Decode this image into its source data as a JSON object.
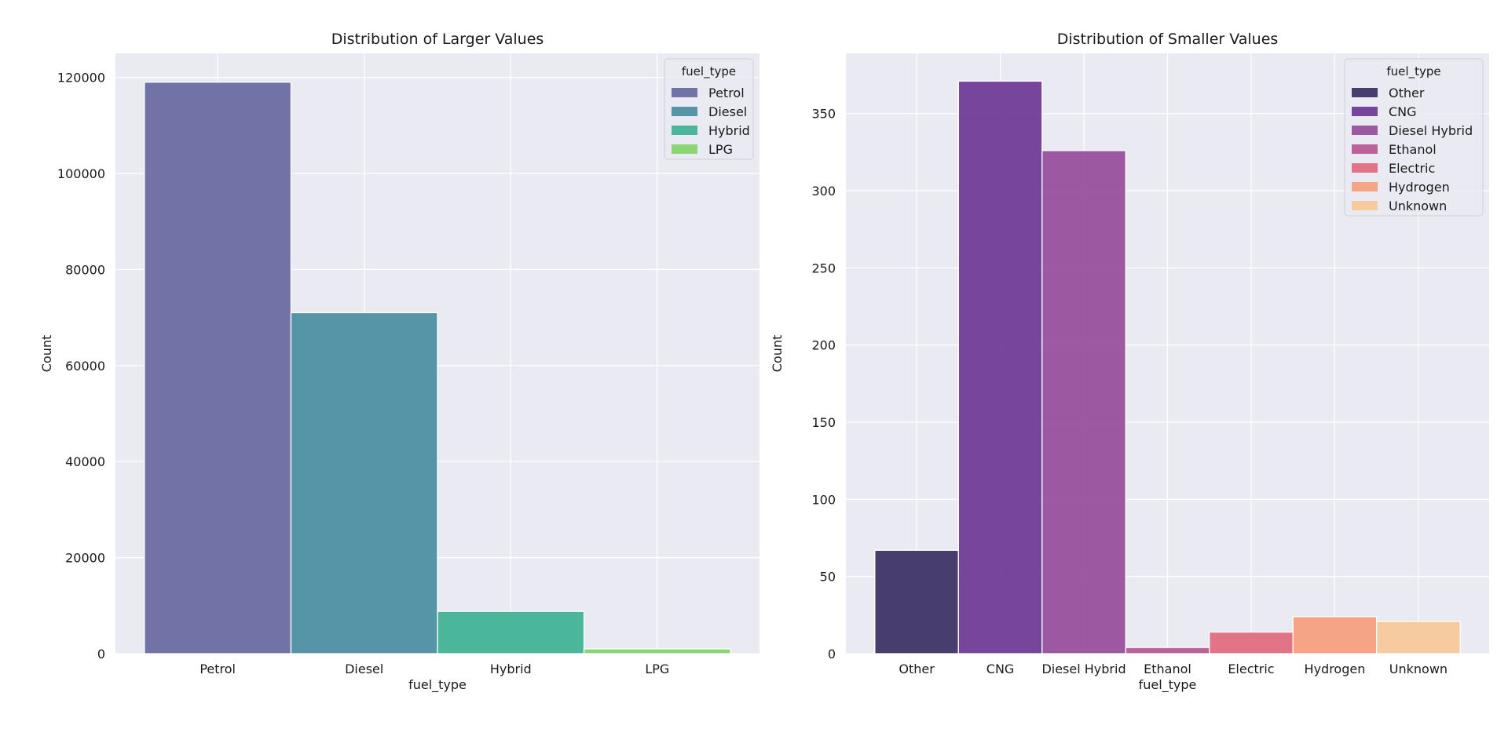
{
  "chart_data": [
    {
      "type": "bar",
      "title": "Distribution of Larger Values",
      "xlabel": "fuel_type",
      "ylabel": "Count",
      "categories": [
        "Petrol",
        "Diesel",
        "Hybrid",
        "LPG"
      ],
      "values": [
        119000,
        71000,
        8800,
        1000
      ],
      "colors": [
        "#6a6ba1",
        "#4e8fa3",
        "#42b394",
        "#86d46e"
      ],
      "ylim": [
        0,
        125000
      ],
      "yticks": [
        0,
        20000,
        40000,
        60000,
        80000,
        100000,
        120000
      ],
      "grid": true,
      "legend": {
        "title": "fuel_type",
        "placement": "top-right",
        "items": [
          "Petrol",
          "Diesel",
          "Hybrid",
          "LPG"
        ]
      }
    },
    {
      "type": "bar",
      "title": "Distribution of Smaller Values",
      "xlabel": "fuel_type",
      "ylabel": "Count",
      "categories": [
        "Other",
        "CNG",
        "Diesel Hybrid",
        "Ethanol",
        "Electric",
        "Hydrogen",
        "Unknown"
      ],
      "values": [
        67,
        371,
        326,
        4,
        14,
        24,
        21
      ],
      "colors": [
        "#3f3566",
        "#713d97",
        "#98519d",
        "#bb5a96",
        "#e06e81",
        "#f5a07e",
        "#f8c99a"
      ],
      "ylim": [
        0,
        389
      ],
      "yticks": [
        0,
        50,
        100,
        150,
        200,
        250,
        300,
        350
      ],
      "grid": true,
      "legend": {
        "title": "fuel_type",
        "placement": "top-right",
        "items": [
          "Other",
          "CNG",
          "Diesel Hybrid",
          "Ethanol",
          "Electric",
          "Hydrogen",
          "Unknown"
        ]
      }
    }
  ]
}
